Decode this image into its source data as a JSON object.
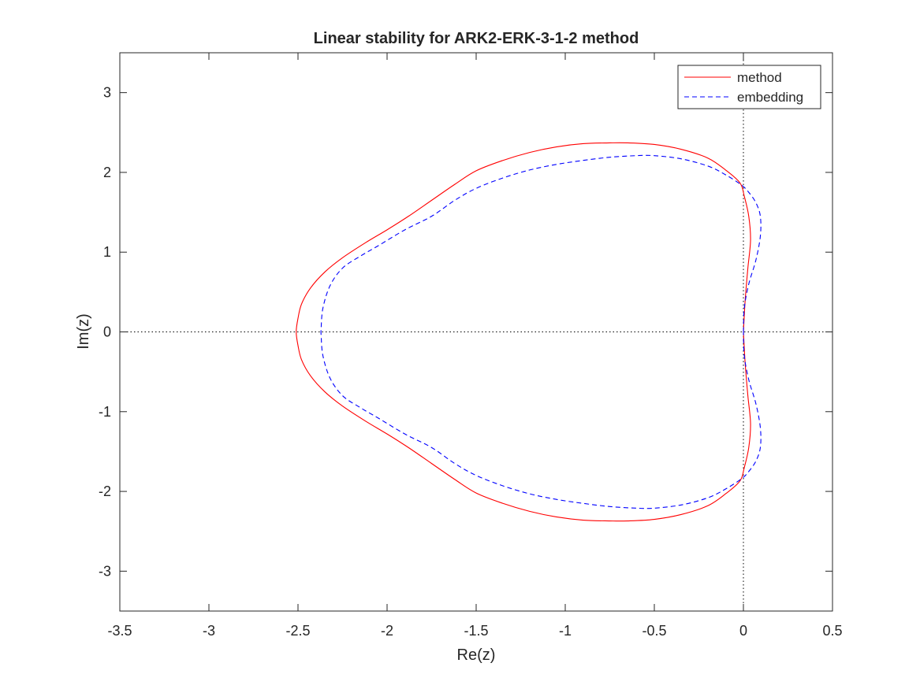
{
  "chart_data": {
    "type": "line",
    "title": "Linear stability for ARK2-ERK-3-1-2 method",
    "xlabel": "Re(z)",
    "ylabel": "Im(z)",
    "xlim": [
      -3.5,
      0.5
    ],
    "ylim": [
      -3.5,
      3.5
    ],
    "xticks": [
      -3.5,
      -3,
      -2.5,
      -2,
      -1.5,
      -1,
      -0.5,
      0,
      0.5
    ],
    "xtick_labels": [
      "-3.5",
      "-3",
      "-2.5",
      "-2",
      "-1.5",
      "-1",
      "-0.5",
      "0",
      "0.5"
    ],
    "yticks": [
      3,
      2,
      1,
      0,
      -1,
      -2,
      -3
    ],
    "ytick_labels": [
      "3",
      "2",
      "1",
      "0",
      "-1",
      "-2",
      "-3"
    ],
    "grid": false,
    "legend_position": "top-right",
    "reference_lines": {
      "x": 0,
      "y": 0,
      "style": "dotted"
    },
    "series": [
      {
        "name": "method",
        "color": "#ff0000",
        "style": "solid",
        "x": [
          0.0,
          0.01,
          0.025,
          0.04,
          0.03,
          0.005,
          -0.02,
          -0.1,
          -0.2,
          -0.35,
          -0.5,
          -0.65,
          -0.75,
          -0.9,
          -1.05,
          -1.2,
          -1.35,
          -1.5,
          -1.62,
          -1.75,
          -1.88,
          -2.0,
          -2.12,
          -2.25,
          -2.35,
          -2.43,
          -2.48,
          -2.5,
          -2.51,
          -2.5,
          -2.48,
          -2.43,
          -2.35,
          -2.25,
          -2.12,
          -2.0,
          -1.88,
          -1.75,
          -1.62,
          -1.5,
          -1.35,
          -1.2,
          -1.05,
          -0.9,
          -0.75,
          -0.65,
          -0.5,
          -0.35,
          -0.2,
          -0.1,
          -0.02,
          0.005,
          0.03,
          0.04,
          0.025,
          0.01,
          0.0
        ],
        "y": [
          0.0,
          0.4,
          0.8,
          1.15,
          1.45,
          1.7,
          1.87,
          2.03,
          2.18,
          2.29,
          2.35,
          2.37,
          2.37,
          2.36,
          2.32,
          2.25,
          2.15,
          2.02,
          1.85,
          1.65,
          1.45,
          1.28,
          1.12,
          0.93,
          0.75,
          0.55,
          0.35,
          0.17,
          0.0,
          -0.17,
          -0.35,
          -0.55,
          -0.75,
          -0.93,
          -1.12,
          -1.28,
          -1.45,
          -1.65,
          -1.85,
          -2.02,
          -2.15,
          -2.25,
          -2.32,
          -2.36,
          -2.37,
          -2.37,
          -2.35,
          -2.29,
          -2.18,
          -2.03,
          -1.87,
          -1.7,
          -1.45,
          -1.15,
          -0.8,
          -0.4,
          0.0
        ]
      },
      {
        "name": "embedding",
        "color": "#0000ff",
        "style": "dashed",
        "x": [
          0.0,
          0.005,
          0.03,
          0.07,
          0.095,
          0.095,
          0.07,
          0.03,
          -0.01,
          -0.1,
          -0.2,
          -0.35,
          -0.5,
          -0.6,
          -0.75,
          -0.9,
          -1.05,
          -1.2,
          -1.35,
          -1.5,
          -1.62,
          -1.75,
          -1.9,
          -2.05,
          -2.15,
          -2.25,
          -2.32,
          -2.36,
          -2.37,
          -2.37,
          -2.36,
          -2.32,
          -2.25,
          -2.15,
          -2.05,
          -1.9,
          -1.75,
          -1.62,
          -1.5,
          -1.35,
          -1.2,
          -1.05,
          -0.9,
          -0.75,
          -0.6,
          -0.5,
          -0.35,
          -0.2,
          -0.1,
          -0.01,
          0.03,
          0.07,
          0.095,
          0.095,
          0.07,
          0.03,
          0.005,
          0.0
        ],
        "y": [
          0.0,
          0.3,
          0.6,
          0.9,
          1.2,
          1.45,
          1.62,
          1.75,
          1.84,
          1.97,
          2.08,
          2.17,
          2.21,
          2.21,
          2.19,
          2.15,
          2.1,
          2.03,
          1.93,
          1.8,
          1.65,
          1.45,
          1.28,
          1.08,
          0.95,
          0.8,
          0.58,
          0.3,
          0.05,
          -0.05,
          -0.3,
          -0.58,
          -0.8,
          -0.95,
          -1.08,
          -1.28,
          -1.45,
          -1.65,
          -1.8,
          -1.93,
          -2.03,
          -2.1,
          -2.15,
          -2.19,
          -2.21,
          -2.21,
          -2.17,
          -2.08,
          -1.97,
          -1.84,
          -1.75,
          -1.62,
          -1.45,
          -1.2,
          -0.9,
          -0.6,
          -0.3,
          0.0
        ]
      }
    ]
  }
}
